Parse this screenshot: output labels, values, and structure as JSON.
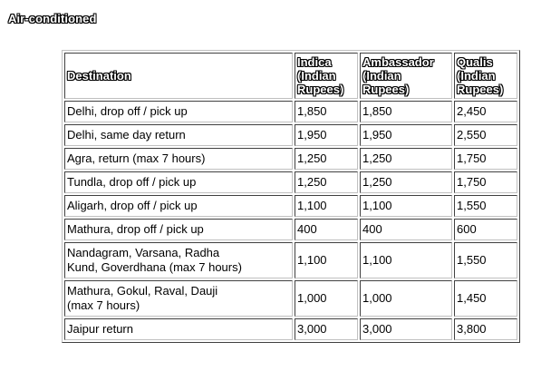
{
  "section_title": "Air-conditioned",
  "table": {
    "headers": {
      "destination": "Destination",
      "indica": [
        "Indica",
        "(Indian",
        "Rupees)"
      ],
      "ambassador": [
        "Ambassador",
        "(Indian",
        "Rupees)"
      ],
      "qualis": [
        "Qualis",
        "(Indian",
        "Rupees)"
      ]
    },
    "rows": [
      {
        "destination": [
          "Delhi, drop off / pick up"
        ],
        "indica": "1,850",
        "ambassador": "1,850",
        "qualis": "2,450"
      },
      {
        "destination": [
          "Delhi, same day return"
        ],
        "indica": "1,950",
        "ambassador": "1,950",
        "qualis": "2,550"
      },
      {
        "destination": [
          "Agra, return (max 7 hours)"
        ],
        "indica": "1,250",
        "ambassador": "1,250",
        "qualis": "1,750"
      },
      {
        "destination": [
          "Tundla, drop off / pick up"
        ],
        "indica": "1,250",
        "ambassador": "1,250",
        "qualis": "1,750"
      },
      {
        "destination": [
          "Aligarh, drop off / pick up"
        ],
        "indica": "1,100",
        "ambassador": "1,100",
        "qualis": "1,550"
      },
      {
        "destination": [
          "Mathura, drop off / pick up"
        ],
        "indica": "400",
        "ambassador": "400",
        "qualis": "600"
      },
      {
        "destination": [
          "Nandagram, Varsana, Radha",
          "Kund, Goverdhana (max 7 hours)"
        ],
        "indica": "1,100",
        "ambassador": "1,100",
        "qualis": "1,550"
      },
      {
        "destination": [
          "Mathura, Gokul, Raval, Dauji",
          "(max 7 hours)"
        ],
        "indica": "1,000",
        "ambassador": "1,000",
        "qualis": "1,450"
      },
      {
        "destination": [
          "Jaipur return"
        ],
        "indica": "3,000",
        "ambassador": "3,000",
        "qualis": "3,800"
      }
    ]
  }
}
